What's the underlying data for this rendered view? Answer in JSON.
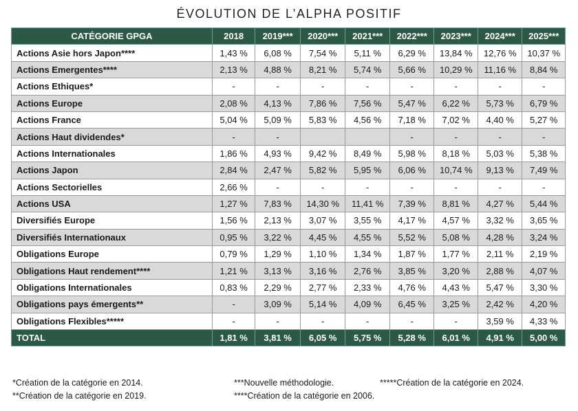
{
  "title": "ÉVOLUTION DE L’ALPHA POSITIF",
  "headers": [
    "CATÉGORIE GPGA",
    "2018",
    "2019***",
    "2020***",
    "2021***",
    "2022***",
    "2023***",
    "2024***",
    "2025***"
  ],
  "rows": [
    {
      "category": "Actions Asie hors Japon****",
      "values": [
        "1,43 %",
        "6,08 %",
        "7,54 %",
        "5,11 %",
        "6,29 %",
        "13,84 %",
        "12,76 %",
        "10,37 %"
      ]
    },
    {
      "category": "Actions Emergentes****",
      "values": [
        "2,13 %",
        "4,88 %",
        "8,21 %",
        "5,74 %",
        "5,66 %",
        "10,29 %",
        "11,16 %",
        "8,84 %"
      ]
    },
    {
      "category": "Actions Ethiques*",
      "values": [
        "-",
        "-",
        "-",
        "-",
        "-",
        "-",
        "-",
        "-"
      ]
    },
    {
      "category": "Actions Europe",
      "values": [
        "2,08 %",
        "4,13 %",
        "7,86 %",
        "7,56 %",
        "5,47 %",
        "6,22 %",
        "5,73 %",
        "6,79 %"
      ]
    },
    {
      "category": "Actions France",
      "values": [
        "5,04 %",
        "5,09 %",
        "5,83 %",
        "4,56 %",
        "7,18 %",
        "7,02 %",
        "4,40 %",
        "5,27 %"
      ]
    },
    {
      "category": "Actions Haut dividendes*",
      "values": [
        "-",
        "-",
        "",
        "",
        "-",
        "-",
        "-",
        "-"
      ]
    },
    {
      "category": "Actions Internationales",
      "values": [
        "1,86 %",
        "4,93 %",
        "9,42 %",
        "8,49 %",
        "5,98 %",
        "8,18 %",
        "5,03 %",
        "5,38 %"
      ]
    },
    {
      "category": "Actions Japon",
      "values": [
        "2,84 %",
        "2,47 %",
        "5,82 %",
        "5,95 %",
        "6,06 %",
        "10,74 %",
        "9,13 %",
        "7,49 %"
      ]
    },
    {
      "category": "Actions Sectorielles",
      "values": [
        "2,66 %",
        "-",
        "-",
        "-",
        "-",
        "-",
        "-",
        "-"
      ]
    },
    {
      "category": "Actions USA",
      "values": [
        "1,27 %",
        "7,83 %",
        "14,30 %",
        "11,41 %",
        "7,39 %",
        "8,81 %",
        "4,27 %",
        "5,44 %"
      ]
    },
    {
      "category": "Diversifiés Europe",
      "values": [
        "1,56 %",
        "2,13 %",
        "3,07 %",
        "3,55 %",
        "4,17 %",
        "4,57 %",
        "3,32 %",
        "3,65 %"
      ]
    },
    {
      "category": "Diversifiés Internationaux",
      "values": [
        "0,95 %",
        "3,22 %",
        "4,45 %",
        "4,55 %",
        "5,52 %",
        "5,08 %",
        "4,28 %",
        "3,24 %"
      ]
    },
    {
      "category": "Obligations Europe",
      "values": [
        "0,79 %",
        "1,29 %",
        "1,10 %",
        "1,34 %",
        "1,87 %",
        "1,77 %",
        "2,11 %",
        "2,19 %"
      ]
    },
    {
      "category": "Obligations Haut rendement****",
      "values": [
        "1,21 %",
        "3,13 %",
        "3,16 %",
        "2,76 %",
        "3,85 %",
        "3,20 %",
        "2,88 %",
        "4,07 %"
      ]
    },
    {
      "category": "Obligations Internationales",
      "values": [
        "0,83 %",
        "2,29 %",
        "2,77 %",
        "2,33 %",
        "4,76 %",
        "4,43 %",
        "5,47 %",
        "3,30 %"
      ]
    },
    {
      "category": "Obligations pays émergents**",
      "values": [
        "-",
        "3,09 %",
        "5,14 %",
        "4,09 %",
        "6,45 %",
        "3,25 %",
        "2,42 %",
        "4,20 %"
      ]
    },
    {
      "category": "Obligations Flexibles*****",
      "values": [
        "-",
        "-",
        "-",
        "-",
        "-",
        "-",
        "3,59 %",
        "4,33 %"
      ]
    }
  ],
  "total": {
    "category": "TOTAL",
    "values": [
      "1,81 %",
      "3,81 %",
      "6,05 %",
      "5,75 %",
      "5,28 %",
      "6,01 %",
      "4,91 %",
      "5,00 %"
    ]
  },
  "footnotes": {
    "f1": "*Création de la catégorie en 2014.",
    "f2": "**Création de la catégorie en 2019.",
    "f3": "***Nouvelle méthodologie.",
    "f4": "****Création de la catégorie en 2006.",
    "f5": "*****Création de la catégorie en 2024."
  },
  "colors": {
    "header_green": "#2a5a45",
    "row_shade": "#d9d9d9"
  }
}
